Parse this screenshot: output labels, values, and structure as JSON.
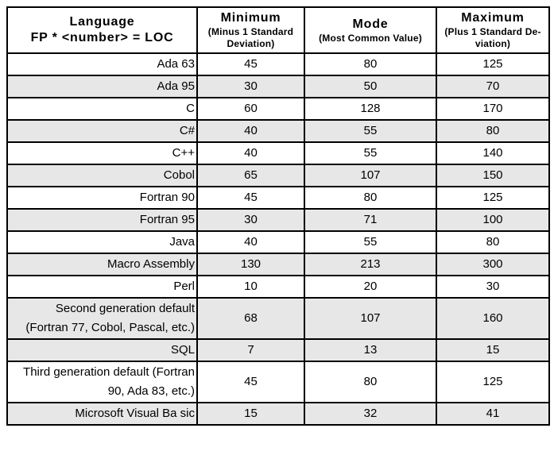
{
  "colors": {
    "row_shade": "#e7e7e7",
    "row_plain": "#ffffff",
    "border": "#000000",
    "background": "#ffffff"
  },
  "table": {
    "header": {
      "language": {
        "title": "Language",
        "subtitle": "FP * <number> = LOC"
      },
      "columns": [
        {
          "title": "Minimum",
          "subtitle": "(Minus 1 Standard\nDeviation)"
        },
        {
          "title": "Mode",
          "subtitle": "(Most Common Value)"
        },
        {
          "title": "Maximum",
          "subtitle": "(Plus 1 Standard De-\nviation)"
        }
      ]
    },
    "rows": [
      {
        "language": "Ada 63",
        "minimum": 45,
        "mode": 80,
        "maximum": 125,
        "shaded": false
      },
      {
        "language": "Ada 95",
        "minimum": 30,
        "mode": 50,
        "maximum": 70,
        "shaded": true
      },
      {
        "language": "C",
        "minimum": 60,
        "mode": 128,
        "maximum": 170,
        "shaded": false
      },
      {
        "language": "C#",
        "minimum": 40,
        "mode": 55,
        "maximum": 80,
        "shaded": true
      },
      {
        "language": "C++",
        "minimum": 40,
        "mode": 55,
        "maximum": 140,
        "shaded": false
      },
      {
        "language": "Cobol",
        "minimum": 65,
        "mode": 107,
        "maximum": 150,
        "shaded": true
      },
      {
        "language": "Fortran 90",
        "minimum": 45,
        "mode": 80,
        "maximum": 125,
        "shaded": false
      },
      {
        "language": "Fortran 95",
        "minimum": 30,
        "mode": 71,
        "maximum": 100,
        "shaded": true
      },
      {
        "language": "Java",
        "minimum": 40,
        "mode": 55,
        "maximum": 80,
        "shaded": false
      },
      {
        "language": "Macro Assembly",
        "minimum": 130,
        "mode": 213,
        "maximum": 300,
        "shaded": true
      },
      {
        "language": "Perl",
        "minimum": 10,
        "mode": 20,
        "maximum": 30,
        "shaded": false
      },
      {
        "language": "Second generation default (Fortran 77, Cobol, Pascal, etc.)",
        "minimum": 68,
        "mode": 107,
        "maximum": 160,
        "shaded": true
      },
      {
        "language": "SQL",
        "minimum": 7,
        "mode": 13,
        "maximum": 15,
        "shaded": true
      },
      {
        "language": "Third generation default (Fortran 90, Ada 83, etc.)",
        "minimum": 45,
        "mode": 80,
        "maximum": 125,
        "shaded": false
      },
      {
        "language": "Microsoft Visual Ba sic",
        "minimum": 15,
        "mode": 32,
        "maximum": 41,
        "shaded": true
      }
    ]
  }
}
